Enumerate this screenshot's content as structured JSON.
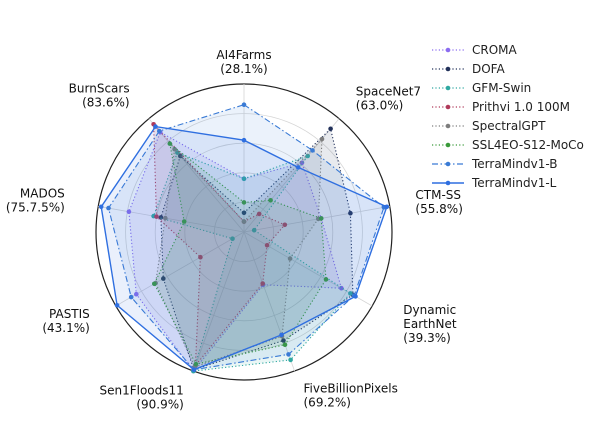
{
  "chart_data": {
    "type": "radar",
    "title": "",
    "axes": [
      {
        "name": "AI4Farms",
        "max_label": "(28.1%)"
      },
      {
        "name": "SpaceNet7",
        "max_label": "(63.0%)"
      },
      {
        "name": "CTM-SS",
        "max_label": "(55.8%)"
      },
      {
        "name": "Dynamic EarthNet",
        "max_label": "(39.3%)"
      },
      {
        "name": "FiveBillionPixels",
        "max_label": "(69.2%)"
      },
      {
        "name": "Sen1Floods11",
        "max_label": "(90.9%)"
      },
      {
        "name": "PASTIS",
        "max_label": "(43.1%)"
      },
      {
        "name": "MADOS",
        "max_label": "(75.7.5%)"
      },
      {
        "name": "BurnScars",
        "max_label": "(83.6%)"
      }
    ],
    "grid": true,
    "legend_position": "right",
    "series": [
      {
        "name": "CROMA",
        "color": "#8b6cf0",
        "dash": "dotted",
        "marker": "circle",
        "values": [
          0.36,
          0.61,
          0.53,
          0.76,
          0.38,
          1.0,
          0.84,
          0.79,
          0.88
        ]
      },
      {
        "name": "DOFA",
        "color": "#22315a",
        "dash": "dotted",
        "marker": "circle",
        "values": [
          0.13,
          0.91,
          0.73,
          0.85,
          0.78,
          0.99,
          0.63,
          0.57,
          0.67
        ]
      },
      {
        "name": "GFM-Swin",
        "color": "#2fa8a1",
        "dash": "dotted",
        "marker": "circle",
        "values": [
          0.36,
          0.67,
          0.07,
          0.83,
          0.92,
          1.0,
          0.09,
          0.62,
          0.7
        ]
      },
      {
        "name": "Prithvi 1.0 100M",
        "color": "#b03a5b",
        "dash": "dotted",
        "marker": "circle",
        "values": [
          0.07,
          0.16,
          0.28,
          0.18,
          0.37,
          0.96,
          0.34,
          0.6,
          0.95
        ]
      },
      {
        "name": "SpectralGPT",
        "color": "#7d7d7d",
        "dash": "dotted",
        "marker": "circle",
        "values": [
          0.07,
          0.82,
          0.51,
          0.36,
          0.75,
          0.97,
          0.69,
          0.54,
          0.73
        ]
      },
      {
        "name": "SSL4EO-S12-MoCo",
        "color": "#3a9a3a",
        "dash": "dotted",
        "marker": "circle",
        "values": [
          0.2,
          0.28,
          0.53,
          0.64,
          0.81,
          0.95,
          0.7,
          0.41,
          0.78
        ]
      },
      {
        "name": "TerraMindv1-B",
        "color": "#3a7bd5",
        "dash": "dashdot",
        "marker": "circle",
        "values": [
          0.86,
          0.72,
          0.96,
          0.86,
          0.88,
          0.99,
          0.88,
          0.93,
          0.89
        ]
      },
      {
        "name": "TerraMindv1-L",
        "color": "#2f6fe0",
        "dash": "solid",
        "marker": "circle",
        "values": [
          0.62,
          0.57,
          0.98,
          0.87,
          0.74,
          0.99,
          0.99,
          0.98,
          0.93
        ]
      }
    ]
  }
}
